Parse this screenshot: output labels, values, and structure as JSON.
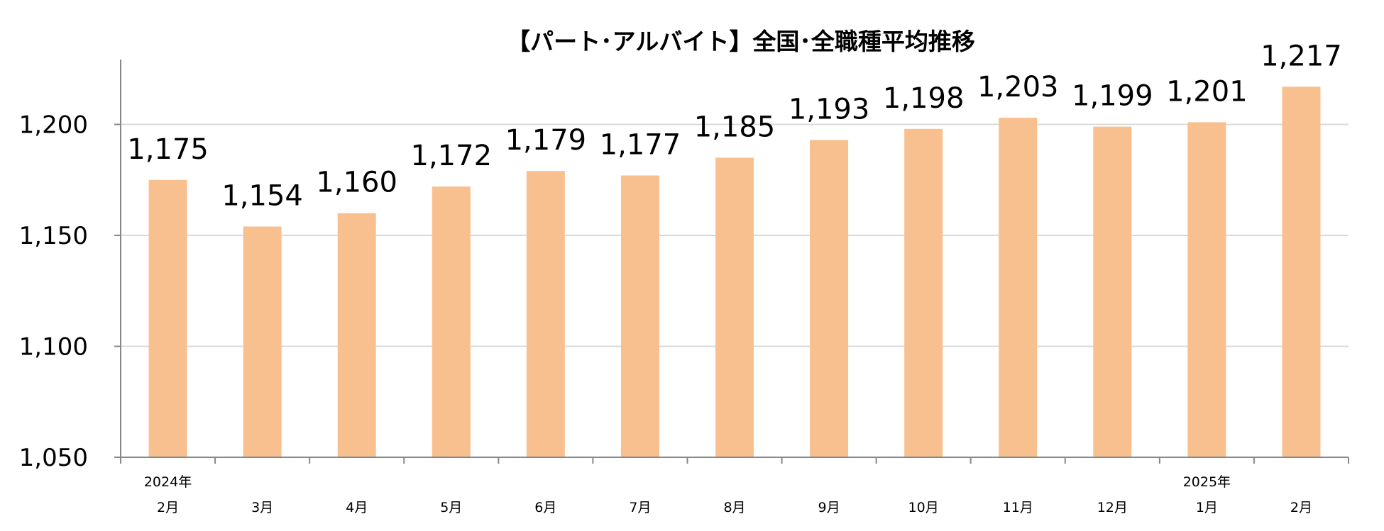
{
  "chart_data": {
    "type": "bar",
    "title": "【パート･アルバイト】全国･全職種平均推移",
    "categories": [
      "2月",
      "3月",
      "4月",
      "5月",
      "6月",
      "7月",
      "8月",
      "9月",
      "10月",
      "11月",
      "12月",
      "1月",
      "2月"
    ],
    "years": [
      "2024年",
      "",
      "",
      "",
      "",
      "",
      "",
      "",
      "",
      "",
      "",
      "2025年",
      ""
    ],
    "values": [
      1175,
      1154,
      1160,
      1172,
      1179,
      1177,
      1185,
      1193,
      1198,
      1203,
      1199,
      1201,
      1217
    ],
    "data_labels": [
      "1,175",
      "1,154",
      "1,160",
      "1,172",
      "1,179",
      "1,177",
      "1,185",
      "1,193",
      "1,198",
      "1,203",
      "1,199",
      "1,201",
      "1,217"
    ],
    "y_ticks": [
      1050,
      1100,
      1150,
      1200
    ],
    "y_tick_labels": [
      "1,050",
      "1,100",
      "1,150",
      "1,200"
    ],
    "ylim": [
      1050,
      1230
    ],
    "grid": true,
    "bar_color": "#f9c08f",
    "grid_color": "#d9d9d9",
    "axis_color": "#888888"
  }
}
